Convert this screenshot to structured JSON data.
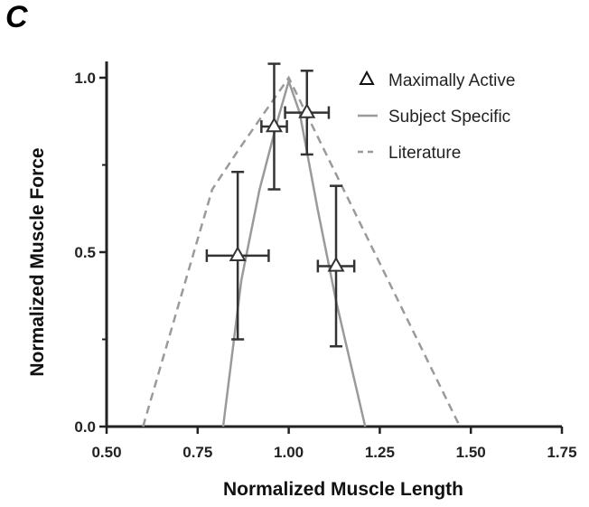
{
  "panel_label": "C",
  "chart_data": {
    "type": "line",
    "xlabel": "Normalized Muscle Length",
    "ylabel": "Normalized Muscle Force",
    "xlim": [
      0.5,
      1.75
    ],
    "ylim": [
      0.0,
      1.05
    ],
    "x_ticks": [
      "0.50",
      "0.75",
      "1.00",
      "1.25",
      "1.50",
      "1.75"
    ],
    "y_ticks": [
      "0.0",
      "0.5",
      "1.0"
    ],
    "grid": false,
    "legend_position": "top-right",
    "series": [
      {
        "name": "Maximally Active",
        "kind": "points_with_error_bars",
        "marker": "triangle",
        "points": [
          {
            "x": 0.86,
            "y": 0.49,
            "xerr": 0.085,
            "yerr": 0.24
          },
          {
            "x": 0.96,
            "y": 0.86,
            "xerr": 0.035,
            "yerr": 0.18
          },
          {
            "x": 1.05,
            "y": 0.9,
            "xerr": 0.06,
            "yerr": 0.12
          },
          {
            "x": 1.13,
            "y": 0.46,
            "xerr": 0.05,
            "yerr": 0.23
          }
        ],
        "color": "#333333"
      },
      {
        "name": "Subject Specific",
        "kind": "line",
        "style": "solid",
        "x": [
          0.82,
          0.87,
          0.92,
          0.97,
          1.0,
          1.03,
          1.08,
          1.13,
          1.21
        ],
        "y": [
          0.0,
          0.42,
          0.68,
          0.88,
          0.99,
          0.9,
          0.62,
          0.36,
          0.0
        ],
        "color": "#9a9a9a"
      },
      {
        "name": "Literature",
        "kind": "line",
        "style": "dashed",
        "x": [
          0.6,
          0.79,
          0.86,
          1.0,
          1.47
        ],
        "y": [
          0.0,
          0.68,
          0.79,
          1.0,
          0.0
        ],
        "color": "#9a9a9a"
      }
    ]
  }
}
